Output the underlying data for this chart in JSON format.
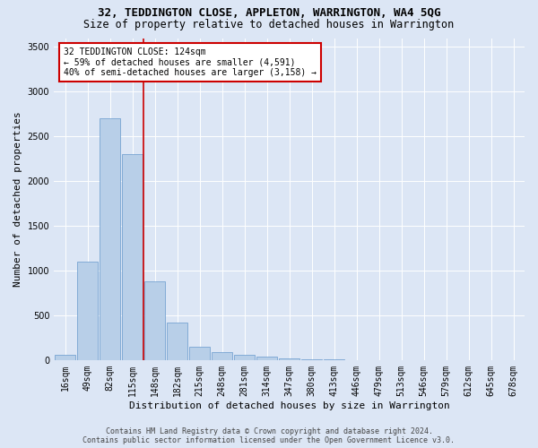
{
  "title": "32, TEDDINGTON CLOSE, APPLETON, WARRINGTON, WA4 5QG",
  "subtitle": "Size of property relative to detached houses in Warrington",
  "xlabel": "Distribution of detached houses by size in Warrington",
  "ylabel": "Number of detached properties",
  "footer_line1": "Contains HM Land Registry data © Crown copyright and database right 2024.",
  "footer_line2": "Contains public sector information licensed under the Open Government Licence v3.0.",
  "categories": [
    "16sqm",
    "49sqm",
    "82sqm",
    "115sqm",
    "148sqm",
    "182sqm",
    "215sqm",
    "248sqm",
    "281sqm",
    "314sqm",
    "347sqm",
    "380sqm",
    "413sqm",
    "446sqm",
    "479sqm",
    "513sqm",
    "546sqm",
    "579sqm",
    "612sqm",
    "645sqm",
    "678sqm"
  ],
  "values": [
    55,
    1100,
    2700,
    2300,
    880,
    420,
    150,
    90,
    55,
    35,
    18,
    10,
    5,
    3,
    2,
    1,
    1,
    0,
    0,
    0,
    0
  ],
  "bar_color": "#b8cfe8",
  "bar_edge_color": "#6699cc",
  "vline_x": 3.5,
  "annotation_text": "32 TEDDINGTON CLOSE: 124sqm\n← 59% of detached houses are smaller (4,591)\n40% of semi-detached houses are larger (3,158) →",
  "annotation_box_color": "white",
  "annotation_box_edge_color": "#cc0000",
  "vline_color": "#cc0000",
  "ylim": [
    0,
    3600
  ],
  "yticks": [
    0,
    500,
    1000,
    1500,
    2000,
    2500,
    3000,
    3500
  ],
  "bg_color": "#dce6f5",
  "plot_bg_color": "#dce6f5",
  "grid_color": "white",
  "title_fontsize": 9,
  "subtitle_fontsize": 8.5,
  "axis_label_fontsize": 8,
  "tick_fontsize": 7,
  "annotation_fontsize": 7,
  "footer_fontsize": 6
}
